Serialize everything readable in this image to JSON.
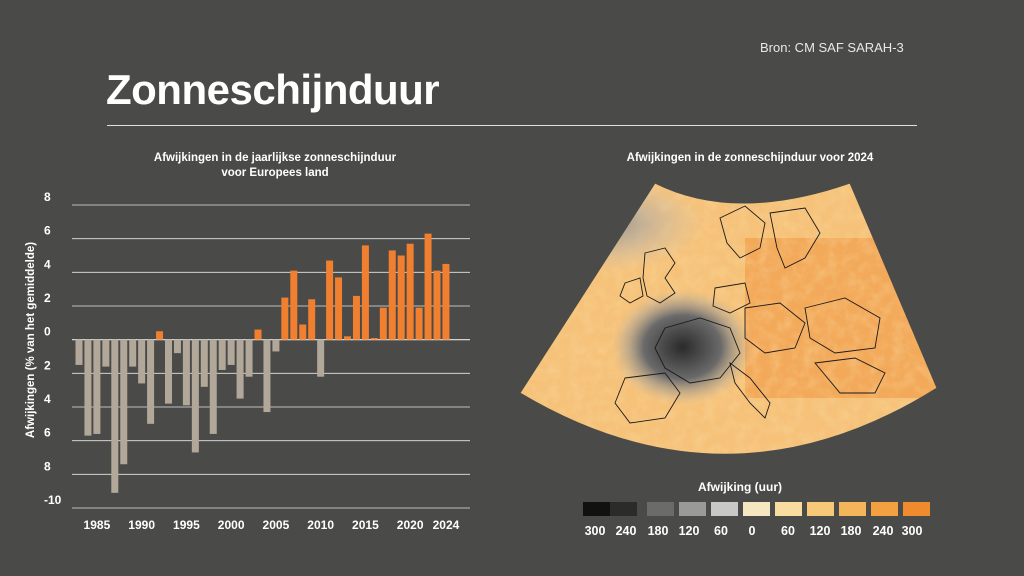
{
  "source": "Bron: CM SAF SARAH-3",
  "title": "Zonneschijnduur",
  "colors": {
    "background": "#4a4a48",
    "negative_bar": "#b2a89a",
    "positive_bar": "#f08030"
  },
  "chart_data": {
    "type": "bar",
    "title_lines": [
      "Afwijkingen in de jaarlijkse zonneschijnduur",
      "voor Europees land"
    ],
    "ylabel": "Afwijkingen (% van het gemiddelde)",
    "xlabel": "",
    "ylim": [
      -10,
      8
    ],
    "yticks": [
      8,
      6,
      4,
      2,
      0,
      -2,
      -4,
      -6,
      -8,
      -10
    ],
    "ytick_labels": [
      "8",
      "6",
      "4",
      "2",
      "0",
      "2",
      "4",
      "6",
      "8",
      "-10"
    ],
    "xticks": [
      "1985",
      "1990",
      "1995",
      "2000",
      "2005",
      "2010",
      "2015",
      "2020",
      "2024"
    ],
    "categories": [
      1983,
      1984,
      1985,
      1986,
      1987,
      1988,
      1989,
      1990,
      1991,
      1992,
      1993,
      1994,
      1995,
      1996,
      1997,
      1998,
      1999,
      2000,
      2001,
      2002,
      2003,
      2004,
      2005,
      2006,
      2007,
      2008,
      2009,
      2010,
      2011,
      2012,
      2013,
      2014,
      2015,
      2016,
      2017,
      2018,
      2019,
      2020,
      2021,
      2022,
      2023,
      2024
    ],
    "values": [
      -1.5,
      -5.7,
      -5.6,
      -1.6,
      -9.1,
      -7.4,
      -1.6,
      -2.6,
      -5.0,
      0.5,
      -3.8,
      -0.8,
      -3.9,
      -6.7,
      -2.8,
      -5.6,
      -1.8,
      -1.5,
      -3.5,
      -2.2,
      0.6,
      -4.3,
      -0.7,
      2.5,
      4.1,
      0.9,
      2.4,
      -2.2,
      4.7,
      3.7,
      0.2,
      2.6,
      5.6,
      0.1,
      1.9,
      5.3,
      5.0,
      5.7,
      1.9,
      6.3,
      4.1,
      4.5
    ],
    "grid": true
  },
  "map": {
    "title": "Afwijkingen in de zonneschijnduur voor 2024",
    "legend_title": "Afwijking (uur)",
    "legend_colors": [
      "#111111",
      "#2b2b2b",
      "#6b6b6b",
      "#9a9a9a",
      "#c8c8c8",
      "#f6e7c1",
      "#f8dca0",
      "#f6c878",
      "#f4b45a",
      "#f2a040",
      "#f08a2e"
    ],
    "legend_labels": [
      "300",
      "240",
      "180",
      "120",
      "60",
      "0",
      "60",
      "120",
      "180",
      "240",
      "300"
    ]
  }
}
